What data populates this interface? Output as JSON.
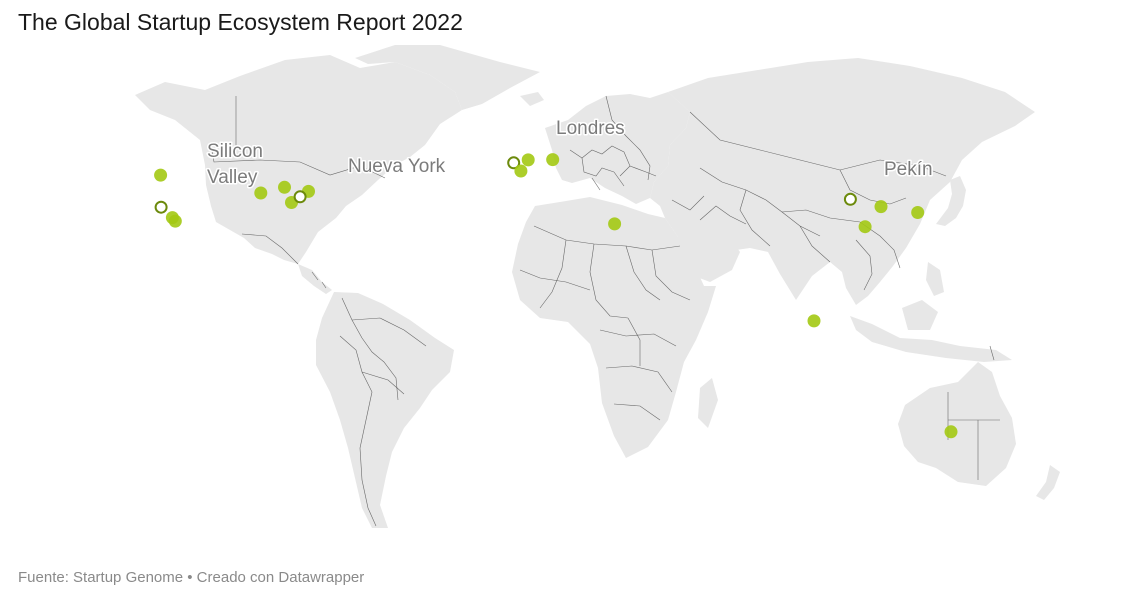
{
  "title": "The Global Startup Ecosystem Report 2022",
  "footer": "Fuente: Startup Genome • Creado con Datawrapper",
  "colors": {
    "land": "#e7e7e7",
    "border": "#4a4a4a",
    "marker": "#a3c913",
    "marker_outline": "#6c8a0c",
    "label": "#7b7b7b"
  },
  "labels": [
    {
      "id": "silicon-valley",
      "lines": [
        "Silicon",
        "Valley"
      ]
    },
    {
      "id": "nueva-york",
      "lines": [
        "Nueva York"
      ]
    },
    {
      "id": "londres",
      "lines": [
        "Londres"
      ]
    },
    {
      "id": "pekin",
      "lines": [
        "Pekín"
      ]
    }
  ],
  "markers": [
    {
      "name": "silicon-valley",
      "lat": 37.4,
      "lon": -122.1,
      "style": "ring"
    },
    {
      "name": "seattle",
      "lat": 47.6,
      "lon": -122.3,
      "style": "dot"
    },
    {
      "name": "los-angeles-1",
      "lat": 34.1,
      "lon": -118.2,
      "style": "dot"
    },
    {
      "name": "los-angeles-2",
      "lat": 33.0,
      "lon": -117.2,
      "style": "dot"
    },
    {
      "name": "chicago",
      "lat": 41.9,
      "lon": -87.6,
      "style": "dot"
    },
    {
      "name": "toronto",
      "lat": 43.7,
      "lon": -79.4,
      "style": "dot"
    },
    {
      "name": "boston",
      "lat": 42.4,
      "lon": -71.1,
      "style": "dot"
    },
    {
      "name": "washington",
      "lat": 38.9,
      "lon": -77.0,
      "style": "dot"
    },
    {
      "name": "nueva-york",
      "lat": 40.7,
      "lon": -74.0,
      "style": "ring"
    },
    {
      "name": "londres",
      "lat": 51.5,
      "lon": -0.1,
      "style": "ring"
    },
    {
      "name": "amsterdam",
      "lat": 52.4,
      "lon": 4.9,
      "style": "dot"
    },
    {
      "name": "paris",
      "lat": 48.9,
      "lon": 2.4,
      "style": "dot"
    },
    {
      "name": "berlin",
      "lat": 52.5,
      "lon": 13.4,
      "style": "dot"
    },
    {
      "name": "tel-aviv",
      "lat": 32.1,
      "lon": 34.8,
      "style": "dot"
    },
    {
      "name": "pekin",
      "lat": 39.9,
      "lon": 116.4,
      "style": "ring"
    },
    {
      "name": "shanghai",
      "lat": 31.2,
      "lon": 121.5,
      "style": "dot"
    },
    {
      "name": "seul",
      "lat": 37.6,
      "lon": 127.0,
      "style": "dot"
    },
    {
      "name": "tokio",
      "lat": 35.7,
      "lon": 139.7,
      "style": "dot"
    },
    {
      "name": "singapur",
      "lat": 1.3,
      "lon": 103.8,
      "style": "dot"
    },
    {
      "name": "sidney",
      "lat": -33.9,
      "lon": 151.2,
      "style": "dot"
    }
  ]
}
